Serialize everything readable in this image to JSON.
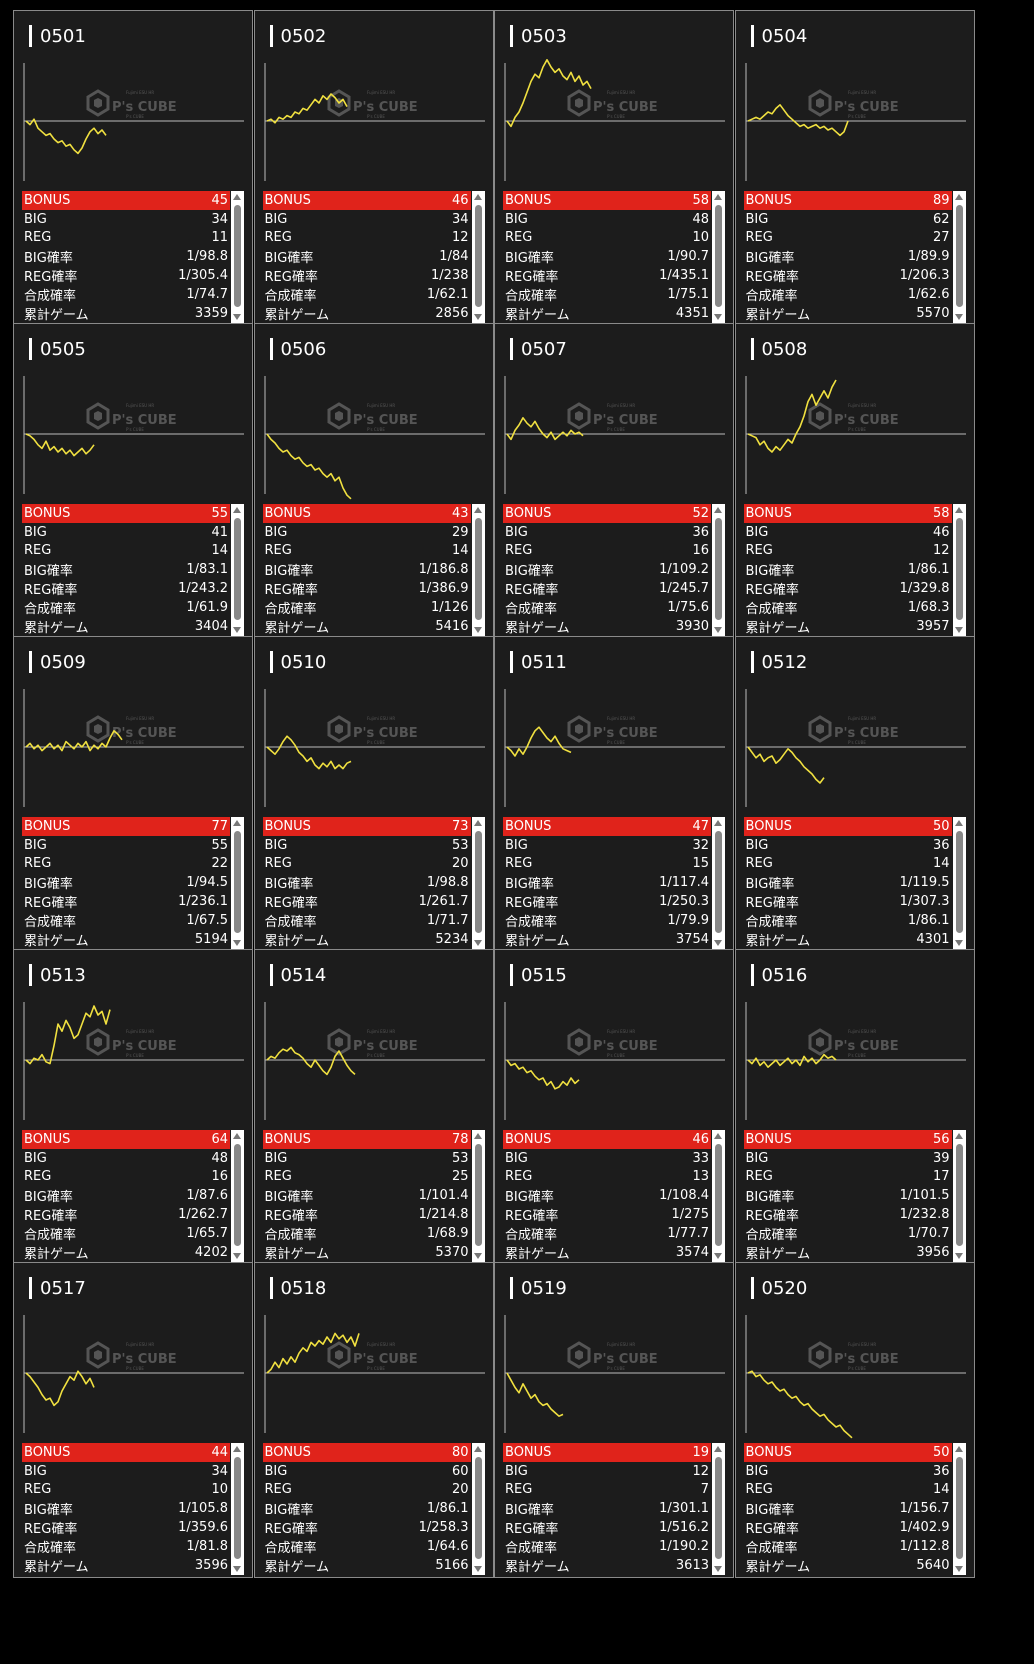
{
  "watermark": {
    "brand": "P's CUBE",
    "small": "Fujimi ESU HR",
    "sub": "P's CUBE"
  },
  "labels": {
    "bonus": "BONUS",
    "big": "BIG",
    "reg": "REG",
    "big_rate": "BIG確率",
    "reg_rate": "REG確率",
    "total_rate": "合成確率",
    "games": "累計ゲーム"
  },
  "colors": {
    "bonus_bg": "#e0231b",
    "graph_line": "#f0e040",
    "card_bg": "#1c1c1c"
  },
  "machines": [
    {
      "id": "0501",
      "bonus": "45",
      "big": "34",
      "reg": "11",
      "big_rate": "1/98.8",
      "reg_rate": "1/305.4",
      "total_rate": "1/74.7",
      "games": "3359",
      "graph": [
        0,
        -2,
        1,
        -4,
        -6,
        -8,
        -7,
        -10,
        -12,
        -11,
        -14,
        -13,
        -16,
        -18,
        -15,
        -10,
        -6,
        -4,
        -7,
        -5,
        -8
      ]
    },
    {
      "id": "0502",
      "bonus": "46",
      "big": "34",
      "reg": "12",
      "big_rate": "1/84",
      "reg_rate": "1/238",
      "total_rate": "1/62.1",
      "games": "2856",
      "graph": [
        0,
        1,
        -1,
        2,
        1,
        3,
        2,
        5,
        4,
        7,
        6,
        9,
        12,
        10,
        14,
        12,
        15,
        13,
        10,
        12,
        8
      ]
    },
    {
      "id": "0503",
      "bonus": "58",
      "big": "48",
      "reg": "10",
      "big_rate": "1/90.7",
      "reg_rate": "1/435.1",
      "total_rate": "1/75.1",
      "games": "4351",
      "graph": [
        0,
        -3,
        2,
        5,
        10,
        16,
        22,
        26,
        24,
        30,
        34,
        30,
        27,
        29,
        25,
        23,
        27,
        22,
        25,
        20,
        22,
        18
      ]
    },
    {
      "id": "0504",
      "bonus": "89",
      "big": "62",
      "reg": "27",
      "big_rate": "1/89.9",
      "reg_rate": "1/206.3",
      "total_rate": "1/62.6",
      "games": "5570",
      "graph": [
        0,
        1,
        2,
        1,
        3,
        5,
        4,
        7,
        9,
        6,
        3,
        1,
        -1,
        -3,
        -2,
        -4,
        -3,
        -2,
        -4,
        -3,
        -5,
        -4,
        -6,
        -8,
        -6,
        0
      ]
    },
    {
      "id": "0505",
      "bonus": "55",
      "big": "41",
      "reg": "14",
      "big_rate": "1/83.1",
      "reg_rate": "1/243.2",
      "total_rate": "1/61.9",
      "games": "3404",
      "graph": [
        0,
        -1,
        -3,
        -6,
        -8,
        -4,
        -9,
        -7,
        -10,
        -8,
        -11,
        -9,
        -12,
        -10,
        -8,
        -11,
        -9,
        -6
      ]
    },
    {
      "id": "0506",
      "bonus": "43",
      "big": "29",
      "reg": "14",
      "big_rate": "1/186.8",
      "reg_rate": "1/386.9",
      "total_rate": "1/126",
      "games": "5416",
      "graph": [
        0,
        -3,
        -5,
        -8,
        -10,
        -9,
        -12,
        -14,
        -13,
        -16,
        -18,
        -17,
        -20,
        -19,
        -22,
        -24,
        -22,
        -26,
        -24,
        -30,
        -34,
        -36
      ]
    },
    {
      "id": "0507",
      "bonus": "52",
      "big": "36",
      "reg": "16",
      "big_rate": "1/109.2",
      "reg_rate": "1/245.7",
      "total_rate": "1/75.6",
      "games": "3930",
      "graph": [
        0,
        -3,
        2,
        5,
        9,
        6,
        4,
        7,
        3,
        0,
        -2,
        1,
        -3,
        -1,
        1,
        -1,
        2,
        0,
        1,
        -1
      ]
    },
    {
      "id": "0508",
      "bonus": "58",
      "big": "46",
      "reg": "12",
      "big_rate": "1/86.1",
      "reg_rate": "1/329.8",
      "total_rate": "1/68.3",
      "games": "3957",
      "graph": [
        0,
        -1,
        -2,
        -6,
        -4,
        -8,
        -10,
        -7,
        -9,
        -6,
        -3,
        -5,
        0,
        4,
        10,
        18,
        22,
        16,
        20,
        24,
        20,
        26,
        30
      ]
    },
    {
      "id": "0509",
      "bonus": "77",
      "big": "55",
      "reg": "22",
      "big_rate": "1/94.5",
      "reg_rate": "1/236.1",
      "total_rate": "1/67.5",
      "games": "5194",
      "graph": [
        0,
        2,
        -1,
        1,
        -2,
        0,
        2,
        -1,
        1,
        -2,
        3,
        1,
        -1,
        2,
        0,
        3,
        -2,
        1,
        -1,
        2,
        0,
        5,
        9,
        7,
        4
      ]
    },
    {
      "id": "0510",
      "bonus": "73",
      "big": "53",
      "reg": "20",
      "big_rate": "1/98.8",
      "reg_rate": "1/261.7",
      "total_rate": "1/71.7",
      "games": "5234",
      "graph": [
        0,
        -2,
        -4,
        -1,
        3,
        6,
        4,
        1,
        -3,
        -5,
        -8,
        -6,
        -10,
        -12,
        -9,
        -11,
        -8,
        -12,
        -10,
        -12,
        -9,
        -8
      ]
    },
    {
      "id": "0511",
      "bonus": "47",
      "big": "32",
      "reg": "15",
      "big_rate": "1/117.4",
      "reg_rate": "1/250.3",
      "total_rate": "1/79.9",
      "games": "3754",
      "graph": [
        0,
        -2,
        -5,
        -1,
        -4,
        0,
        5,
        9,
        11,
        8,
        5,
        3,
        6,
        2,
        -1,
        -2,
        -3
      ]
    },
    {
      "id": "0512",
      "bonus": "50",
      "big": "36",
      "reg": "14",
      "big_rate": "1/119.5",
      "reg_rate": "1/307.3",
      "total_rate": "1/86.1",
      "games": "4301",
      "graph": [
        0,
        -3,
        -6,
        -4,
        -8,
        -6,
        -5,
        -9,
        -7,
        -4,
        -1,
        -3,
        -6,
        -8,
        -11,
        -13,
        -15,
        -18,
        -20,
        -17
      ]
    },
    {
      "id": "0513",
      "bonus": "64",
      "big": "48",
      "reg": "16",
      "big_rate": "1/87.6",
      "reg_rate": "1/262.7",
      "total_rate": "1/65.7",
      "games": "4202",
      "graph": [
        0,
        -2,
        1,
        0,
        3,
        -1,
        -2,
        8,
        20,
        16,
        22,
        18,
        12,
        14,
        20,
        26,
        24,
        30,
        25,
        27,
        20,
        28
      ]
    },
    {
      "id": "0514",
      "bonus": "78",
      "big": "53",
      "reg": "25",
      "big_rate": "1/101.4",
      "reg_rate": "1/214.8",
      "total_rate": "1/68.9",
      "games": "5370",
      "graph": [
        0,
        2,
        1,
        4,
        6,
        5,
        7,
        4,
        3,
        1,
        -2,
        -4,
        0,
        -3,
        -6,
        -8,
        -4,
        2,
        5,
        1,
        -3,
        -6,
        -8
      ]
    },
    {
      "id": "0515",
      "bonus": "46",
      "big": "33",
      "reg": "13",
      "big_rate": "1/108.4",
      "reg_rate": "1/275",
      "total_rate": "1/77.7",
      "games": "3574",
      "graph": [
        0,
        -3,
        -2,
        -5,
        -4,
        -7,
        -6,
        -9,
        -11,
        -10,
        -14,
        -12,
        -16,
        -15,
        -12,
        -14,
        -10,
        -13,
        -11
      ]
    },
    {
      "id": "0516",
      "bonus": "56",
      "big": "39",
      "reg": "17",
      "big_rate": "1/101.5",
      "reg_rate": "1/232.8",
      "total_rate": "1/70.7",
      "games": "3956",
      "graph": [
        0,
        -2,
        1,
        -3,
        -1,
        -4,
        -2,
        0,
        -3,
        -1,
        1,
        -2,
        0,
        -3,
        2,
        -1,
        1,
        -2,
        0,
        3,
        1,
        2,
        0
      ]
    },
    {
      "id": "0517",
      "bonus": "44",
      "big": "34",
      "reg": "10",
      "big_rate": "1/105.8",
      "reg_rate": "1/359.6",
      "total_rate": "1/81.8",
      "games": "3596",
      "graph": [
        0,
        -2,
        -5,
        -8,
        -12,
        -15,
        -14,
        -18,
        -16,
        -10,
        -6,
        -2,
        -4,
        1,
        -2,
        -6,
        -3,
        -8
      ]
    },
    {
      "id": "0518",
      "bonus": "80",
      "big": "60",
      "reg": "20",
      "big_rate": "1/86.1",
      "reg_rate": "1/258.3",
      "total_rate": "1/64.6",
      "games": "5166",
      "graph": [
        0,
        2,
        6,
        3,
        8,
        5,
        9,
        6,
        11,
        14,
        12,
        17,
        15,
        18,
        16,
        20,
        17,
        22,
        19,
        21,
        17,
        20,
        15,
        22
      ]
    },
    {
      "id": "0519",
      "bonus": "19",
      "big": "12",
      "reg": "7",
      "big_rate": "1/301.1",
      "reg_rate": "1/516.2",
      "total_rate": "1/190.2",
      "games": "3613",
      "graph": [
        0,
        -4,
        -8,
        -11,
        -6,
        -10,
        -14,
        -12,
        -16,
        -18,
        -17,
        -20,
        -22,
        -24,
        -23
      ]
    },
    {
      "id": "0520",
      "bonus": "50",
      "big": "36",
      "reg": "14",
      "big_rate": "1/156.7",
      "reg_rate": "1/402.9",
      "total_rate": "1/112.8",
      "games": "5640",
      "graph": [
        0,
        1,
        -2,
        -1,
        -4,
        -6,
        -5,
        -8,
        -10,
        -9,
        -12,
        -14,
        -13,
        -16,
        -18,
        -17,
        -20,
        -22,
        -24,
        -23,
        -26,
        -28,
        -30,
        -29,
        -32,
        -34,
        -36
      ]
    }
  ]
}
